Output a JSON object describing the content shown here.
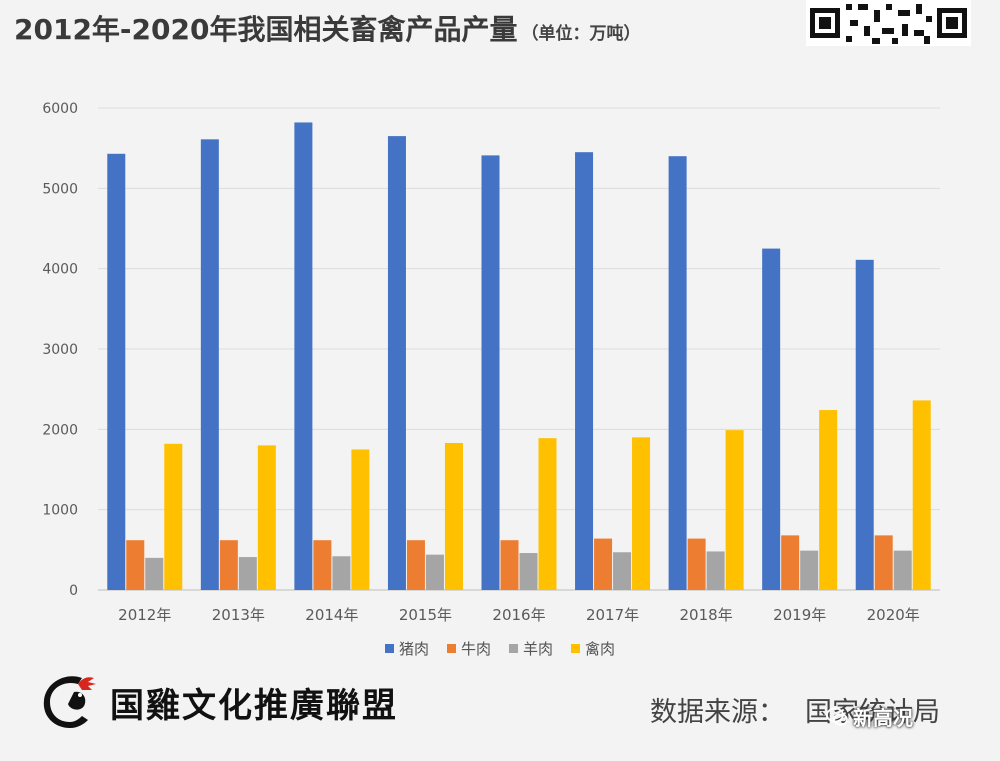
{
  "header": {
    "title": "2012年-2020年我国相关畜禽产品产量",
    "unit": "（单位：万吨）"
  },
  "footer": {
    "org_name": "国雞文化推廣聯盟",
    "source_label": "数据来源：",
    "source_value": "国家统计局",
    "wechat_handle": "新高况"
  },
  "chart_data": {
    "type": "bar",
    "title": "",
    "xlabel": "",
    "ylabel": "",
    "categories": [
      "2012年",
      "2013年",
      "2014年",
      "2015年",
      "2016年",
      "2017年",
      "2018年",
      "2019年",
      "2020年"
    ],
    "ylim": [
      0,
      6000
    ],
    "yticks": [
      "0",
      "1000",
      "2000",
      "3000",
      "4000",
      "5000",
      "6000"
    ],
    "grid": true,
    "legend": "bottom-center",
    "series": [
      {
        "name": "猪肉",
        "color": "#4472C4",
        "values": [
          5430,
          5610,
          5820,
          5650,
          5410,
          5450,
          5400,
          4250,
          4110
        ]
      },
      {
        "name": "牛肉",
        "color": "#ED7D31",
        "values": [
          620,
          620,
          620,
          620,
          620,
          640,
          640,
          680,
          680
        ]
      },
      {
        "name": "羊肉",
        "color": "#A5A5A5",
        "values": [
          400,
          410,
          420,
          440,
          460,
          470,
          480,
          490,
          490
        ]
      },
      {
        "name": "禽肉",
        "color": "#FFC000",
        "values": [
          1820,
          1800,
          1750,
          1830,
          1890,
          1900,
          1990,
          2240,
          2360
        ]
      }
    ]
  }
}
